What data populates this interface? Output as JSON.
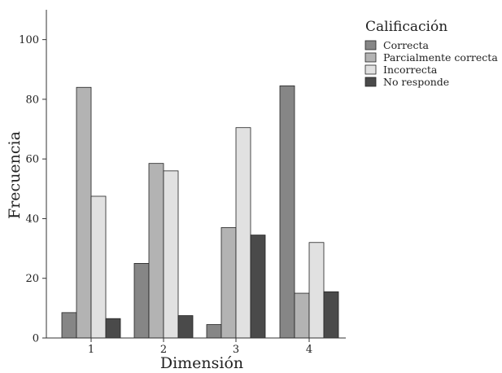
{
  "chart_data": {
    "type": "bar",
    "categories": [
      "1",
      "2",
      "3",
      "4"
    ],
    "series": [
      {
        "name": "Correcta",
        "values": [
          8.5,
          25,
          4.5,
          84.5
        ],
        "color": "#868686"
      },
      {
        "name": "Parcialmente correcta",
        "values": [
          84,
          58.5,
          37,
          15
        ],
        "color": "#b3b3b3"
      },
      {
        "name": "Incorrecta",
        "values": [
          47.5,
          56,
          70.5,
          32
        ],
        "color": "#e1e1e1"
      },
      {
        "name": "No responde",
        "values": [
          6.5,
          7.5,
          34.5,
          15.5
        ],
        "color": "#4a4a4a"
      }
    ],
    "xlabel": "Dimensión",
    "ylabel": "Frecuencia",
    "ylim": [
      0,
      110
    ],
    "yticks": [
      0,
      20,
      40,
      60,
      80,
      100
    ],
    "legend_title": "Calificación",
    "legend_position": "top-right",
    "grid": false
  }
}
